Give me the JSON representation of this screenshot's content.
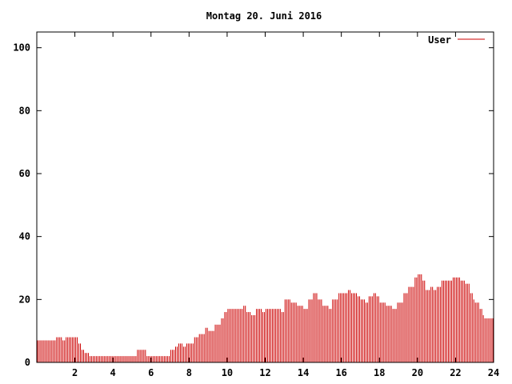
{
  "chart_data": {
    "type": "bar",
    "title": "Montag 20. Juni 2016",
    "xlabel": "",
    "ylabel": "",
    "xlim": [
      0,
      24
    ],
    "ylim": [
      0,
      105
    ],
    "x_ticks": [
      2,
      4,
      6,
      8,
      10,
      12,
      14,
      16,
      18,
      20,
      22,
      24
    ],
    "y_ticks": [
      0,
      20,
      40,
      60,
      80,
      100
    ],
    "legend_position": "top-right",
    "grid": false,
    "color": "#cc0000",
    "series": [
      {
        "name": "User",
        "points": [
          [
            0,
            7
          ],
          [
            0.5,
            7
          ],
          [
            0.9,
            7
          ],
          [
            1,
            8
          ],
          [
            1.3,
            7
          ],
          [
            1.5,
            8
          ],
          [
            1.9,
            8
          ],
          [
            2.1,
            6
          ],
          [
            2.3,
            4
          ],
          [
            2.5,
            3
          ],
          [
            2.7,
            2
          ],
          [
            3.5,
            2
          ],
          [
            4.5,
            2
          ],
          [
            5.1,
            2
          ],
          [
            5.2,
            4
          ],
          [
            5.5,
            4
          ],
          [
            5.7,
            2
          ],
          [
            6.5,
            2
          ],
          [
            6.8,
            2
          ],
          [
            7,
            4
          ],
          [
            7.2,
            5
          ],
          [
            7.4,
            6
          ],
          [
            7.6,
            5
          ],
          [
            7.8,
            6
          ],
          [
            8,
            6
          ],
          [
            8.2,
            8
          ],
          [
            8.5,
            9
          ],
          [
            8.8,
            11
          ],
          [
            9,
            10
          ],
          [
            9.3,
            12
          ],
          [
            9.6,
            14
          ],
          [
            9.8,
            16
          ],
          [
            10,
            17
          ],
          [
            10.5,
            17
          ],
          [
            10.8,
            18
          ],
          [
            11,
            16
          ],
          [
            11.2,
            15
          ],
          [
            11.5,
            17
          ],
          [
            11.8,
            16
          ],
          [
            12,
            17
          ],
          [
            12.5,
            17
          ],
          [
            12.8,
            16
          ],
          [
            13,
            20
          ],
          [
            13.3,
            19
          ],
          [
            13.6,
            18
          ],
          [
            14,
            17
          ],
          [
            14.2,
            20
          ],
          [
            14.5,
            22
          ],
          [
            14.7,
            20
          ],
          [
            15,
            18
          ],
          [
            15.3,
            17
          ],
          [
            15.5,
            20
          ],
          [
            15.8,
            22
          ],
          [
            16,
            22
          ],
          [
            16.3,
            23
          ],
          [
            16.5,
            22
          ],
          [
            16.8,
            21
          ],
          [
            17,
            20
          ],
          [
            17.2,
            19
          ],
          [
            17.4,
            21
          ],
          [
            17.6,
            22
          ],
          [
            17.8,
            21
          ],
          [
            18,
            19
          ],
          [
            18.3,
            18
          ],
          [
            18.6,
            17
          ],
          [
            18.9,
            19
          ],
          [
            19.2,
            22
          ],
          [
            19.5,
            24
          ],
          [
            19.8,
            27
          ],
          [
            20,
            28
          ],
          [
            20.2,
            26
          ],
          [
            20.4,
            23
          ],
          [
            20.6,
            24
          ],
          [
            20.8,
            23
          ],
          [
            21,
            24
          ],
          [
            21.2,
            26
          ],
          [
            21.5,
            26
          ],
          [
            21.8,
            27
          ],
          [
            22.2,
            26
          ],
          [
            22.5,
            25
          ],
          [
            22.7,
            22
          ],
          [
            22.9,
            20
          ],
          [
            23,
            19
          ],
          [
            23.2,
            17
          ],
          [
            23.4,
            15
          ],
          [
            23.5,
            14
          ],
          [
            24,
            14
          ]
        ]
      }
    ]
  }
}
